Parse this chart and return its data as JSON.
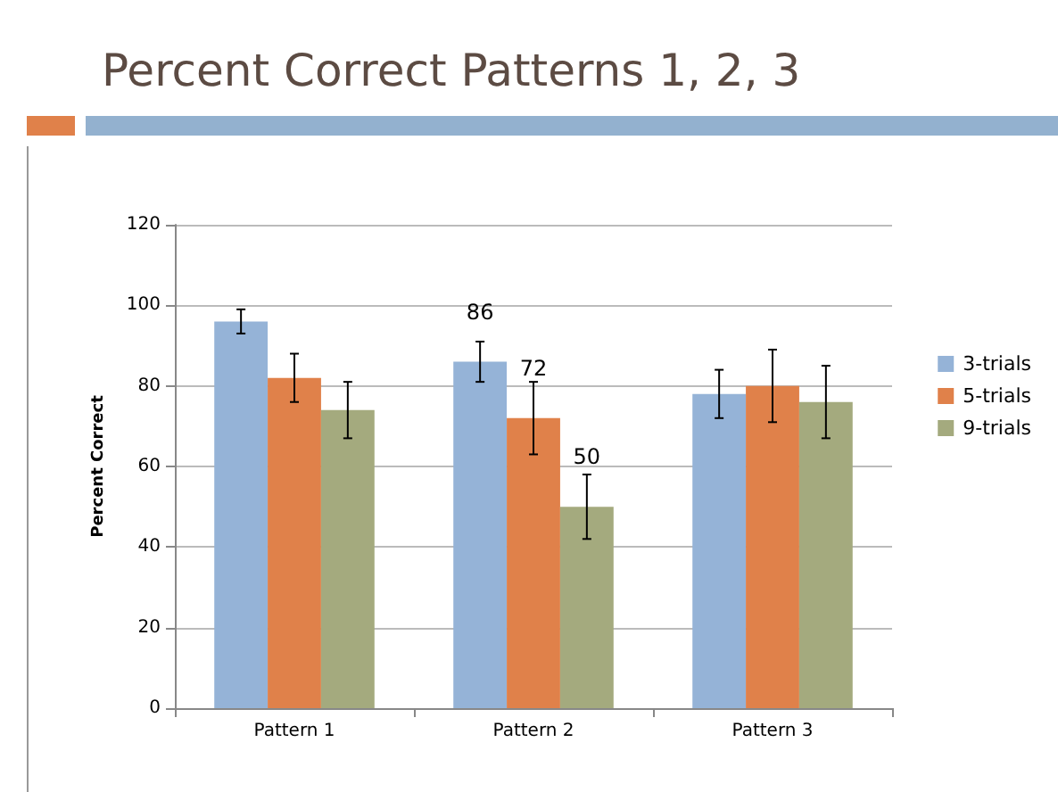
{
  "chart_data": {
    "type": "bar",
    "title": "Percent Correct Patterns 1, 2, 3",
    "ylabel": "Percent Correct",
    "categories": [
      "Pattern 1",
      "Pattern 2",
      "Pattern 3"
    ],
    "series": [
      {
        "name": "3-trials",
        "color": "#95b3d7",
        "values": [
          96,
          86,
          78
        ],
        "errors": [
          3,
          5,
          6
        ],
        "value_labels": [
          null,
          "86",
          null
        ]
      },
      {
        "name": "5-trials",
        "color": "#e0814a",
        "values": [
          82,
          72,
          80
        ],
        "errors": [
          6,
          9,
          9
        ],
        "value_labels": [
          null,
          "72",
          null
        ]
      },
      {
        "name": "9-trials",
        "color": "#a4aa7e",
        "values": [
          74,
          50,
          76
        ],
        "errors": [
          7,
          8,
          9
        ],
        "value_labels": [
          null,
          "50",
          null
        ]
      }
    ],
    "ylim": [
      0,
      120
    ],
    "yticks": [
      0,
      20,
      40,
      60,
      80,
      100,
      120
    ],
    "grid": "y",
    "legend": "right"
  }
}
